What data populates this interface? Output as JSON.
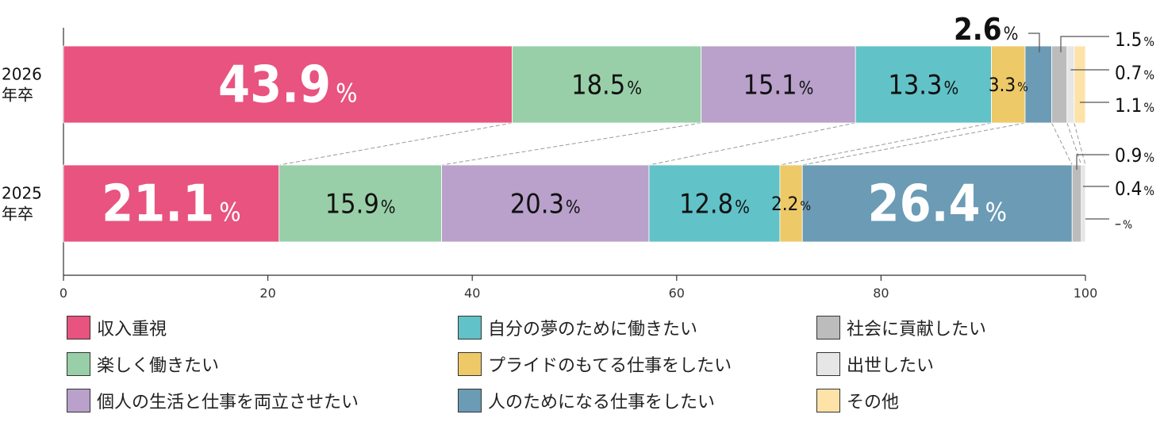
{
  "chart_data": {
    "type": "bar",
    "orientation": "horizontal",
    "stacked": true,
    "xlim": [
      0,
      100
    ],
    "xticks": [
      "0",
      "20",
      "40",
      "60",
      "80",
      "100"
    ],
    "unit": "%",
    "categories": [
      {
        "line1": "2026",
        "line2": "年卒"
      },
      {
        "line1": "2025",
        "line2": "年卒"
      }
    ],
    "series": [
      {
        "name": "収入重視",
        "color": "#e8537f",
        "values": [
          43.9,
          21.1
        ],
        "labels": [
          "43.9",
          "21.1"
        ]
      },
      {
        "name": "楽しく働きたい",
        "color": "#98cfa8",
        "values": [
          18.5,
          15.9
        ],
        "labels": [
          "18.5",
          "15.9"
        ]
      },
      {
        "name": "個人の生活と仕事を両立させたい",
        "color": "#b9a1cb",
        "values": [
          15.1,
          20.3
        ],
        "labels": [
          "15.1",
          "20.3"
        ]
      },
      {
        "name": "自分の夢のために働きたい",
        "color": "#61c2c8",
        "values": [
          13.3,
          12.8
        ],
        "labels": [
          "13.3",
          "12.8"
        ]
      },
      {
        "name": "プライドのもてる仕事をしたい",
        "color": "#edc967",
        "values": [
          3.3,
          2.2
        ],
        "labels": [
          "3.3",
          "2.2"
        ]
      },
      {
        "name": "人のためになる仕事をしたい",
        "color": "#6b9bb5",
        "values": [
          2.6,
          26.4
        ],
        "labels": [
          "2.6",
          "26.4"
        ]
      },
      {
        "name": "社会に貢献したい",
        "color": "#bcbcbc",
        "values": [
          1.5,
          0.9
        ],
        "labels": [
          "1.5",
          "0.9"
        ]
      },
      {
        "name": "出世したい",
        "color": "#e6e6e6",
        "values": [
          0.7,
          0.4
        ],
        "labels": [
          "0.7",
          "0.4"
        ]
      },
      {
        "name": "その他",
        "color": "#fde3a7",
        "values": [
          1.1,
          0
        ],
        "labels": [
          "1.1",
          "–"
        ]
      }
    ],
    "legend_columns": [
      [
        "収入重視",
        "楽しく働きたい",
        "個人の生活と仕事を両立させたい"
      ],
      [
        "自分の夢のために働きたい",
        "プライドのもてる仕事をしたい",
        "人のためになる仕事をしたい"
      ],
      [
        "社会に貢献したい",
        "出世したい",
        "その他"
      ]
    ]
  }
}
